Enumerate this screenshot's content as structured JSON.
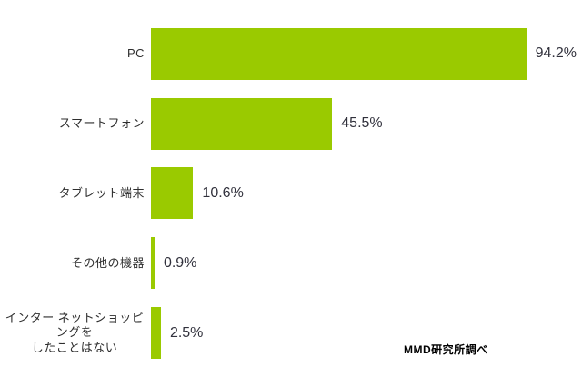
{
  "chart_data": {
    "type": "bar",
    "orientation": "horizontal",
    "title": "",
    "xlabel": "",
    "ylabel": "",
    "xlim": [
      0,
      100
    ],
    "grid": false,
    "legend": false,
    "categories": [
      "PC",
      "スマートフォン",
      "タブレット端末",
      "その他の機器",
      "インター ネットショッピングをしたことはない"
    ],
    "values": [
      94.2,
      45.5,
      10.6,
      0.9,
      2.5
    ],
    "value_labels": [
      "94.2%",
      "45.5%",
      "10.6%",
      "0.9%",
      "2.5%"
    ],
    "rows": [
      {
        "label": "PC",
        "value": 94.2,
        "value_label": "94.2%"
      },
      {
        "label": "スマートフォン",
        "value": 45.5,
        "value_label": "45.5%"
      },
      {
        "label": "タブレット端末",
        "value": 10.6,
        "value_label": "10.6%"
      },
      {
        "label": "その他の機器",
        "value": 0.9,
        "value_label": "0.9%"
      },
      {
        "label": "インター ネットショッピングをしたことはない",
        "label_line1": "インター ネットショッピングを",
        "label_line2": "したことはない",
        "value": 2.5,
        "value_label": "2.5%"
      }
    ],
    "annotations": [
      "MMD研究所調べ"
    ]
  },
  "caption": {
    "text": "MMD研究所調べ"
  },
  "colors": {
    "bar": "#9aca00",
    "category_text": "#2e2e2e",
    "value_text": "#31313c",
    "caption_text": "#000000",
    "background": "#ffffff"
  }
}
